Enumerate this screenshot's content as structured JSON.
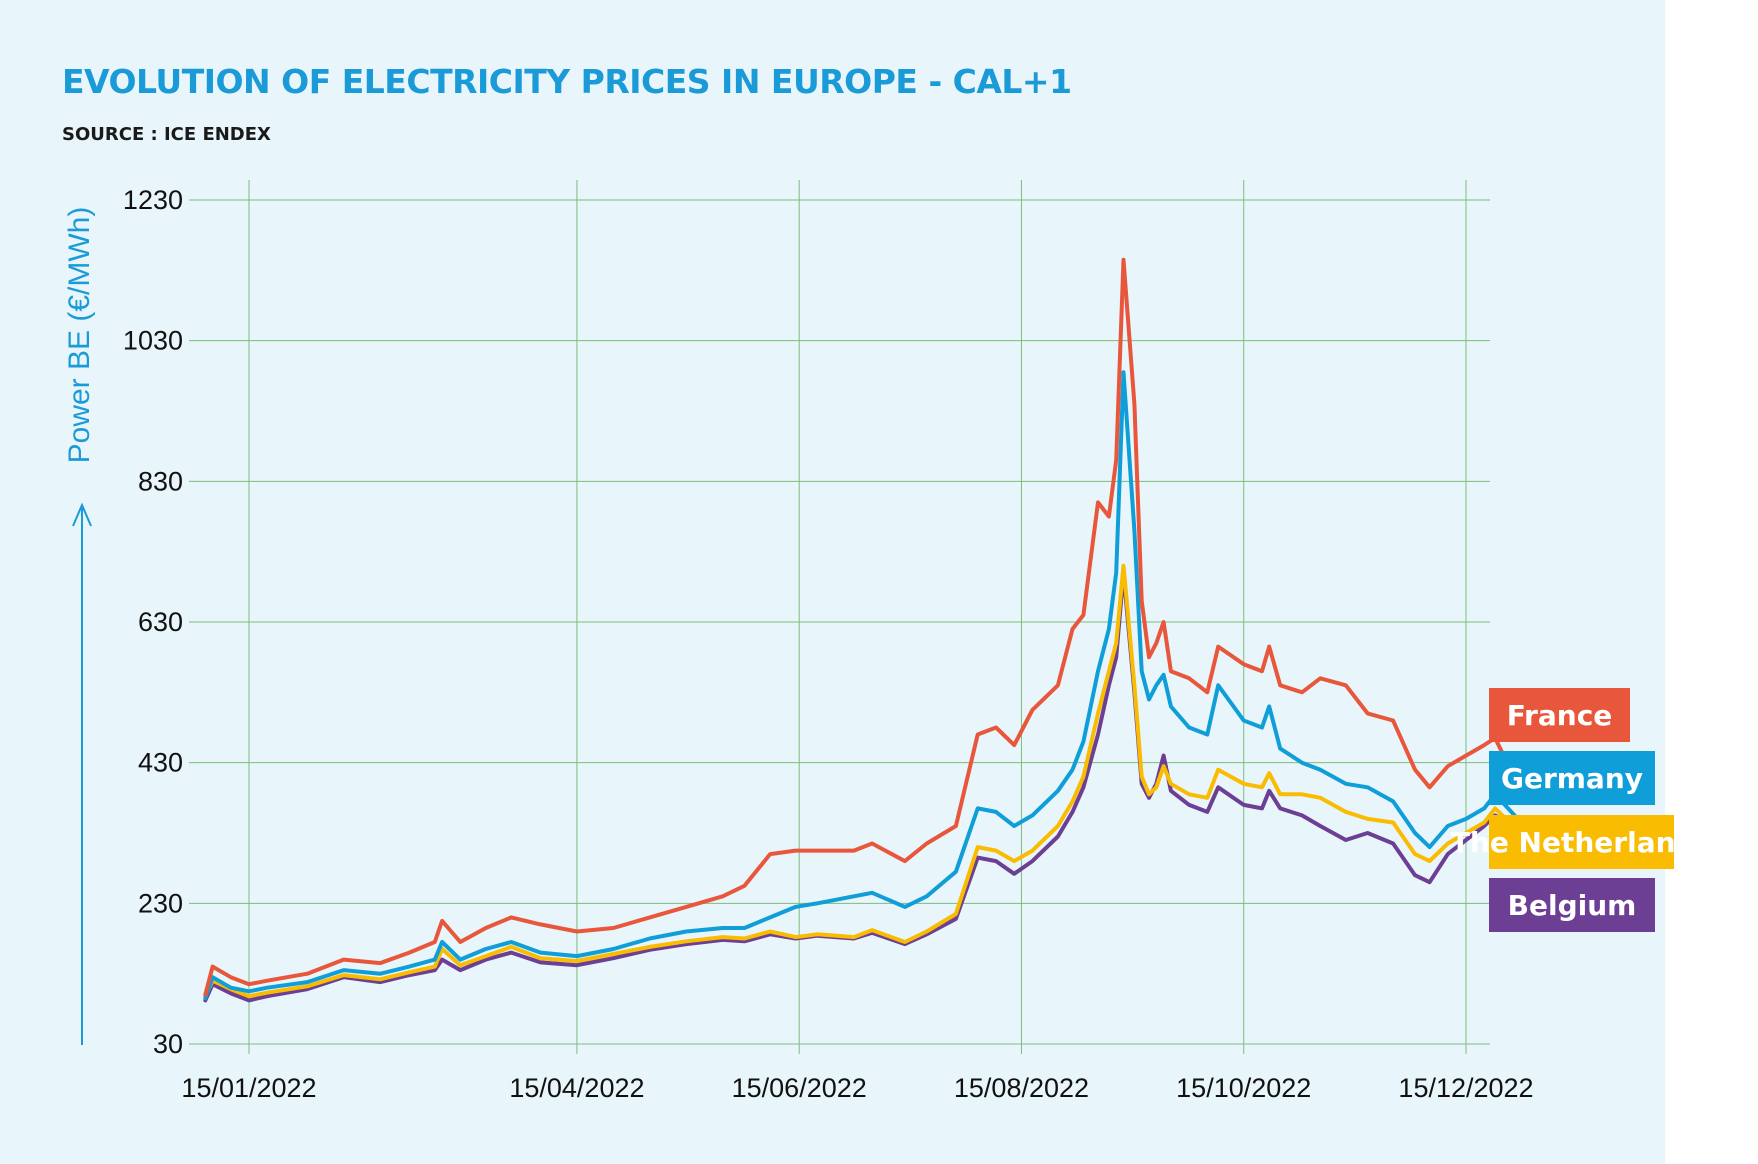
{
  "header": {
    "title": "EVOLUTION OF ELECTRICITY PRICES IN EUROPE - CAL+1",
    "subtitle": "SOURCE : ICE ENDEX"
  },
  "colors": {
    "background": "#e8f5fb",
    "grid": "#7cbd7c",
    "france": "#e8573c",
    "germany": "#0f9ed8",
    "netherlands": "#f9bc00",
    "belgium": "#6c3e94",
    "accent": "#1a9bd7"
  },
  "chart_data": {
    "type": "line",
    "title": "EVOLUTION OF ELECTRICITY PRICES IN EUROPE - CAL+1",
    "subtitle": "SOURCE : ICE ENDEX",
    "ylabel": "Power BE (€/MWh)",
    "xlabel": "",
    "ylim": [
      30,
      1230
    ],
    "yticks": [
      "1230",
      "1030",
      "830",
      "630",
      "430",
      "230",
      "30"
    ],
    "xticks": [
      "15/01/2022",
      "15/04/2022",
      "15/06/2022",
      "15/08/2022",
      "15/10/2022",
      "15/12/2022"
    ],
    "xlim": [
      "2022-01-03",
      "2022-12-31"
    ],
    "grid": true,
    "legend_position": "right",
    "series": [
      {
        "name": "France",
        "color": "#e8573c",
        "points": [
          [
            "2022-01-03",
            100
          ],
          [
            "2022-01-05",
            140
          ],
          [
            "2022-01-10",
            125
          ],
          [
            "2022-01-15",
            115
          ],
          [
            "2022-01-20",
            120
          ],
          [
            "2022-01-31",
            130
          ],
          [
            "2022-02-10",
            150
          ],
          [
            "2022-02-20",
            145
          ],
          [
            "2022-02-28",
            160
          ],
          [
            "2022-03-07",
            175
          ],
          [
            "2022-03-09",
            205
          ],
          [
            "2022-03-14",
            175
          ],
          [
            "2022-03-21",
            195
          ],
          [
            "2022-03-28",
            210
          ],
          [
            "2022-04-05",
            200
          ],
          [
            "2022-04-15",
            190
          ],
          [
            "2022-04-25",
            195
          ],
          [
            "2022-05-05",
            210
          ],
          [
            "2022-05-15",
            225
          ],
          [
            "2022-05-25",
            240
          ],
          [
            "2022-05-31",
            255
          ],
          [
            "2022-06-07",
            300
          ],
          [
            "2022-06-14",
            305
          ],
          [
            "2022-06-20",
            305
          ],
          [
            "2022-06-30",
            305
          ],
          [
            "2022-07-05",
            315
          ],
          [
            "2022-07-14",
            290
          ],
          [
            "2022-07-20",
            315
          ],
          [
            "2022-07-28",
            340
          ],
          [
            "2022-08-03",
            470
          ],
          [
            "2022-08-08",
            480
          ],
          [
            "2022-08-13",
            455
          ],
          [
            "2022-08-18",
            505
          ],
          [
            "2022-08-25",
            540
          ],
          [
            "2022-08-29",
            620
          ],
          [
            "2022-09-01",
            640
          ],
          [
            "2022-09-05",
            800
          ],
          [
            "2022-09-08",
            780
          ],
          [
            "2022-09-10",
            860
          ],
          [
            "2022-09-12",
            1145
          ],
          [
            "2022-09-15",
            940
          ],
          [
            "2022-09-17",
            660
          ],
          [
            "2022-09-19",
            580
          ],
          [
            "2022-09-21",
            600
          ],
          [
            "2022-09-23",
            630
          ],
          [
            "2022-09-25",
            560
          ],
          [
            "2022-09-30",
            550
          ],
          [
            "2022-10-05",
            530
          ],
          [
            "2022-10-08",
            595
          ],
          [
            "2022-10-15",
            570
          ],
          [
            "2022-10-20",
            560
          ],
          [
            "2022-10-22",
            595
          ],
          [
            "2022-10-25",
            540
          ],
          [
            "2022-10-31",
            530
          ],
          [
            "2022-11-05",
            550
          ],
          [
            "2022-11-12",
            540
          ],
          [
            "2022-11-18",
            500
          ],
          [
            "2022-11-25",
            490
          ],
          [
            "2022-12-01",
            420
          ],
          [
            "2022-12-05",
            395
          ],
          [
            "2022-12-10",
            425
          ],
          [
            "2022-12-15",
            440
          ],
          [
            "2022-12-20",
            455
          ],
          [
            "2022-12-23",
            465
          ],
          [
            "2022-12-31",
            380
          ]
        ]
      },
      {
        "name": "Germany",
        "color": "#0f9ed8",
        "points": [
          [
            "2022-01-03",
            95
          ],
          [
            "2022-01-05",
            125
          ],
          [
            "2022-01-10",
            110
          ],
          [
            "2022-01-15",
            105
          ],
          [
            "2022-01-20",
            110
          ],
          [
            "2022-01-31",
            118
          ],
          [
            "2022-02-10",
            135
          ],
          [
            "2022-02-20",
            130
          ],
          [
            "2022-02-28",
            140
          ],
          [
            "2022-03-07",
            150
          ],
          [
            "2022-03-09",
            175
          ],
          [
            "2022-03-14",
            150
          ],
          [
            "2022-03-21",
            165
          ],
          [
            "2022-03-28",
            175
          ],
          [
            "2022-04-05",
            160
          ],
          [
            "2022-04-15",
            155
          ],
          [
            "2022-04-25",
            165
          ],
          [
            "2022-05-05",
            180
          ],
          [
            "2022-05-15",
            190
          ],
          [
            "2022-05-25",
            195
          ],
          [
            "2022-05-31",
            195
          ],
          [
            "2022-06-07",
            210
          ],
          [
            "2022-06-14",
            225
          ],
          [
            "2022-06-20",
            230
          ],
          [
            "2022-06-30",
            240
          ],
          [
            "2022-07-05",
            245
          ],
          [
            "2022-07-14",
            225
          ],
          [
            "2022-07-20",
            240
          ],
          [
            "2022-07-28",
            275
          ],
          [
            "2022-08-03",
            365
          ],
          [
            "2022-08-08",
            360
          ],
          [
            "2022-08-13",
            340
          ],
          [
            "2022-08-18",
            355
          ],
          [
            "2022-08-25",
            390
          ],
          [
            "2022-08-29",
            420
          ],
          [
            "2022-09-01",
            460
          ],
          [
            "2022-09-05",
            560
          ],
          [
            "2022-09-08",
            620
          ],
          [
            "2022-09-10",
            700
          ],
          [
            "2022-09-12",
            985
          ],
          [
            "2022-09-15",
            760
          ],
          [
            "2022-09-17",
            560
          ],
          [
            "2022-09-19",
            520
          ],
          [
            "2022-09-21",
            540
          ],
          [
            "2022-09-23",
            555
          ],
          [
            "2022-09-25",
            510
          ],
          [
            "2022-09-30",
            480
          ],
          [
            "2022-10-05",
            470
          ],
          [
            "2022-10-08",
            540
          ],
          [
            "2022-10-15",
            490
          ],
          [
            "2022-10-20",
            480
          ],
          [
            "2022-10-22",
            510
          ],
          [
            "2022-10-25",
            450
          ],
          [
            "2022-10-31",
            430
          ],
          [
            "2022-11-05",
            420
          ],
          [
            "2022-11-12",
            400
          ],
          [
            "2022-11-18",
            395
          ],
          [
            "2022-11-25",
            375
          ],
          [
            "2022-12-01",
            330
          ],
          [
            "2022-12-05",
            310
          ],
          [
            "2022-12-10",
            340
          ],
          [
            "2022-12-15",
            350
          ],
          [
            "2022-12-20",
            365
          ],
          [
            "2022-12-23",
            385
          ],
          [
            "2022-12-31",
            340
          ]
        ]
      },
      {
        "name": "The Netherlands",
        "color": "#f9bc00",
        "points": [
          [
            "2022-01-03",
            98
          ],
          [
            "2022-01-05",
            120
          ],
          [
            "2022-01-10",
            108
          ],
          [
            "2022-01-15",
            98
          ],
          [
            "2022-01-20",
            103
          ],
          [
            "2022-01-31",
            112
          ],
          [
            "2022-02-10",
            128
          ],
          [
            "2022-02-20",
            122
          ],
          [
            "2022-02-28",
            132
          ],
          [
            "2022-03-07",
            140
          ],
          [
            "2022-03-09",
            165
          ],
          [
            "2022-03-14",
            142
          ],
          [
            "2022-03-21",
            155
          ],
          [
            "2022-03-28",
            168
          ],
          [
            "2022-04-05",
            152
          ],
          [
            "2022-04-15",
            148
          ],
          [
            "2022-04-25",
            158
          ],
          [
            "2022-05-05",
            168
          ],
          [
            "2022-05-15",
            176
          ],
          [
            "2022-05-25",
            182
          ],
          [
            "2022-05-31",
            180
          ],
          [
            "2022-06-07",
            190
          ],
          [
            "2022-06-14",
            182
          ],
          [
            "2022-06-20",
            186
          ],
          [
            "2022-06-30",
            182
          ],
          [
            "2022-07-05",
            192
          ],
          [
            "2022-07-14",
            175
          ],
          [
            "2022-07-20",
            190
          ],
          [
            "2022-07-28",
            215
          ],
          [
            "2022-08-03",
            310
          ],
          [
            "2022-08-08",
            305
          ],
          [
            "2022-08-13",
            290
          ],
          [
            "2022-08-18",
            305
          ],
          [
            "2022-08-25",
            340
          ],
          [
            "2022-08-29",
            375
          ],
          [
            "2022-09-01",
            410
          ],
          [
            "2022-09-05",
            500
          ],
          [
            "2022-09-08",
            560
          ],
          [
            "2022-09-10",
            600
          ],
          [
            "2022-09-12",
            710
          ],
          [
            "2022-09-15",
            540
          ],
          [
            "2022-09-17",
            410
          ],
          [
            "2022-09-19",
            385
          ],
          [
            "2022-09-21",
            395
          ],
          [
            "2022-09-23",
            425
          ],
          [
            "2022-09-25",
            400
          ],
          [
            "2022-09-30",
            385
          ],
          [
            "2022-10-05",
            380
          ],
          [
            "2022-10-08",
            420
          ],
          [
            "2022-10-15",
            400
          ],
          [
            "2022-10-20",
            395
          ],
          [
            "2022-10-22",
            415
          ],
          [
            "2022-10-25",
            385
          ],
          [
            "2022-10-31",
            385
          ],
          [
            "2022-11-05",
            380
          ],
          [
            "2022-11-12",
            360
          ],
          [
            "2022-11-18",
            350
          ],
          [
            "2022-11-25",
            345
          ],
          [
            "2022-12-01",
            300
          ],
          [
            "2022-12-05",
            290
          ],
          [
            "2022-12-10",
            315
          ],
          [
            "2022-12-15",
            330
          ],
          [
            "2022-12-20",
            345
          ],
          [
            "2022-12-23",
            365
          ],
          [
            "2022-12-31",
            325
          ]
        ]
      },
      {
        "name": "Belgium",
        "color": "#6c3e94",
        "points": [
          [
            "2022-01-03",
            92
          ],
          [
            "2022-01-05",
            115
          ],
          [
            "2022-01-10",
            102
          ],
          [
            "2022-01-15",
            92
          ],
          [
            "2022-01-20",
            98
          ],
          [
            "2022-01-31",
            108
          ],
          [
            "2022-02-10",
            125
          ],
          [
            "2022-02-20",
            118
          ],
          [
            "2022-02-28",
            128
          ],
          [
            "2022-03-07",
            135
          ],
          [
            "2022-03-09",
            150
          ],
          [
            "2022-03-14",
            135
          ],
          [
            "2022-03-21",
            150
          ],
          [
            "2022-03-28",
            160
          ],
          [
            "2022-04-05",
            146
          ],
          [
            "2022-04-15",
            142
          ],
          [
            "2022-04-25",
            152
          ],
          [
            "2022-05-05",
            164
          ],
          [
            "2022-05-15",
            172
          ],
          [
            "2022-05-25",
            178
          ],
          [
            "2022-05-31",
            176
          ],
          [
            "2022-06-07",
            186
          ],
          [
            "2022-06-14",
            180
          ],
          [
            "2022-06-20",
            184
          ],
          [
            "2022-06-30",
            180
          ],
          [
            "2022-07-05",
            188
          ],
          [
            "2022-07-14",
            172
          ],
          [
            "2022-07-20",
            186
          ],
          [
            "2022-07-28",
            208
          ],
          [
            "2022-08-03",
            295
          ],
          [
            "2022-08-08",
            290
          ],
          [
            "2022-08-13",
            272
          ],
          [
            "2022-08-18",
            290
          ],
          [
            "2022-08-25",
            325
          ],
          [
            "2022-08-29",
            360
          ],
          [
            "2022-09-01",
            395
          ],
          [
            "2022-09-05",
            470
          ],
          [
            "2022-09-08",
            540
          ],
          [
            "2022-09-10",
            580
          ],
          [
            "2022-09-12",
            700
          ],
          [
            "2022-09-15",
            530
          ],
          [
            "2022-09-17",
            400
          ],
          [
            "2022-09-19",
            380
          ],
          [
            "2022-09-21",
            400
          ],
          [
            "2022-09-23",
            440
          ],
          [
            "2022-09-25",
            390
          ],
          [
            "2022-09-30",
            370
          ],
          [
            "2022-10-05",
            360
          ],
          [
            "2022-10-08",
            395
          ],
          [
            "2022-10-15",
            370
          ],
          [
            "2022-10-20",
            365
          ],
          [
            "2022-10-22",
            390
          ],
          [
            "2022-10-25",
            365
          ],
          [
            "2022-10-31",
            355
          ],
          [
            "2022-11-05",
            340
          ],
          [
            "2022-11-12",
            320
          ],
          [
            "2022-11-18",
            330
          ],
          [
            "2022-11-25",
            315
          ],
          [
            "2022-12-01",
            270
          ],
          [
            "2022-12-05",
            260
          ],
          [
            "2022-12-10",
            300
          ],
          [
            "2022-12-15",
            320
          ],
          [
            "2022-12-20",
            340
          ],
          [
            "2022-12-23",
            355
          ],
          [
            "2022-12-31",
            330
          ]
        ]
      }
    ]
  }
}
